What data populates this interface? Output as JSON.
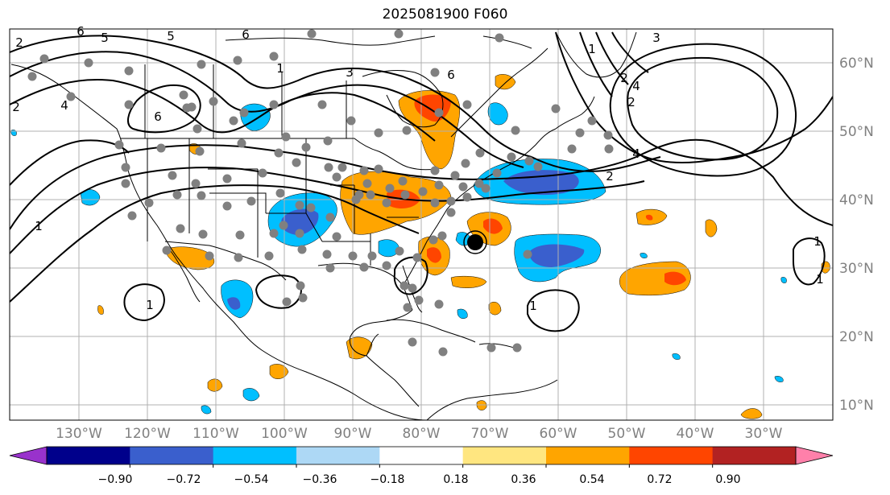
{
  "title": "2025081900 F060",
  "map": {
    "lon_range": [
      -140,
      -18
    ],
    "lat_range": [
      8,
      65
    ],
    "lon_labels": [
      "130°W",
      "120°W",
      "110°W",
      "100°W",
      "90°W",
      "80°W",
      "70°W",
      "60°W",
      "50°W",
      "40°W",
      "30°W"
    ],
    "lat_labels": [
      "60°N",
      "50°N",
      "40°N",
      "30°N",
      "20°N",
      "10°N"
    ],
    "grid": true,
    "colors": {
      "coast": "#000000",
      "grid": "#b0b0b0",
      "station_dot": "#808080",
      "contour": "#000000"
    },
    "contour_labels": [
      "5",
      "6",
      "5",
      "6",
      "1",
      "3",
      "6",
      "1",
      "3",
      "2",
      "4",
      "2",
      "4",
      "6",
      "4",
      "2",
      "1",
      "1",
      "1",
      "1",
      "1",
      "2",
      "2"
    ],
    "station_count": 120
  },
  "colorbar": {
    "colors": [
      "#9932cc",
      "#00008b",
      "#3a5fcd",
      "#00bfff",
      "#add8f5",
      "#ffffff",
      "#ffe680",
      "#ffa500",
      "#ff4500",
      "#b22222",
      "#ff80aa"
    ],
    "tick_labels": [
      "−0.90",
      "−0.72",
      "−0.54",
      "−0.36",
      "−0.18",
      "0.18",
      "0.36",
      "0.54",
      "0.72",
      "0.90"
    ],
    "extend": "both"
  }
}
